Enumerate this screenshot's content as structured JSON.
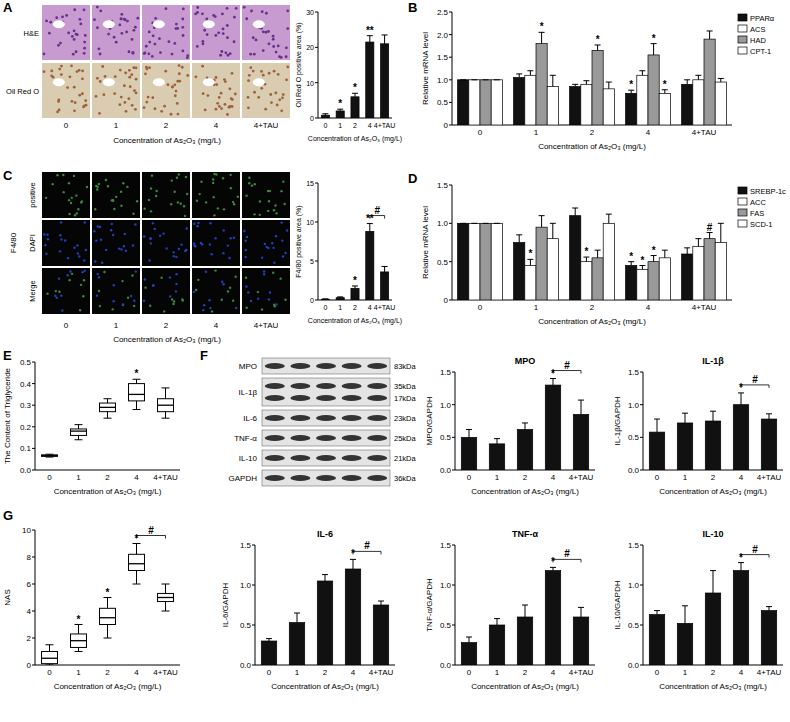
{
  "panel_labels": [
    "A",
    "B",
    "C",
    "D",
    "E",
    "F",
    "G"
  ],
  "images": {
    "A": {
      "row_labels": [
        "H&E",
        "Oil Red O"
      ],
      "column_labels": [
        "0",
        "1",
        "2",
        "4",
        "4+TAU"
      ],
      "x_label": "Concentration of As₂O₃ (mg/L)"
    },
    "C": {
      "group_label": "F4/80",
      "row_labels": [
        "positive",
        "DAPI",
        "Merge"
      ],
      "column_labels": [
        "0",
        "1",
        "2",
        "4",
        "4+TAU"
      ],
      "x_label": "Concentration of As₂O₃ (mg/L)"
    },
    "F": {
      "bands": [
        {
          "label": "MPO",
          "sizes": [
            "83kDa"
          ]
        },
        {
          "label": "IL-1β",
          "sizes": [
            "35kDa",
            "17kDa"
          ]
        },
        {
          "label": "IL-6",
          "sizes": [
            "23kDa"
          ]
        },
        {
          "label": "TNF-α",
          "sizes": [
            "25kDa"
          ]
        },
        {
          "label": "IL-10",
          "sizes": [
            "21kDa"
          ]
        },
        {
          "label": "GAPDH",
          "sizes": [
            "36kDa"
          ]
        }
      ]
    }
  },
  "chart_data": [
    {
      "type": "bar",
      "x_label": "Concentration of As₂O₃ (mg/L)",
      "y_label": "Oil Red O positive area (%)",
      "categories": [
        "0",
        "1",
        "2",
        "4",
        "4+TAU"
      ],
      "values": [
        0.8,
        2,
        6,
        21.5,
        21
      ],
      "errors": [
        0.4,
        0.5,
        1,
        1.8,
        2.5
      ],
      "color": "#111111",
      "ylim": [
        0,
        30
      ],
      "yticks": [
        0,
        10,
        20,
        30
      ],
      "annotations": [
        {
          "text": "*",
          "category": 1
        },
        {
          "text": "*",
          "category": 2
        },
        {
          "text": "**",
          "category": 3
        }
      ]
    },
    {
      "type": "bar",
      "x_label": "Concentration of As₂O₃ (mg/L)",
      "y_label": "Relative mRNA level",
      "categories": [
        "0",
        "1",
        "2",
        "4",
        "4+TAU"
      ],
      "legend": "right",
      "ylim": [
        0,
        2.5
      ],
      "yticks": [
        0,
        {
          "value": 0.5,
          "label": "0.5"
        },
        {
          "value": 1,
          "label": "1.0"
        },
        {
          "value": 1.5,
          "label": "1.5"
        },
        {
          "value": 2,
          "label": "2.0"
        },
        {
          "value": 2.5,
          "label": "2.5"
        }
      ],
      "series": [
        {
          "name": "PPARα",
          "color": "#111111",
          "values": [
            1,
            1.05,
            0.85,
            0.7,
            0.9
          ],
          "errors": [
            0,
            0.08,
            0.05,
            0.07,
            0.1
          ]
        },
        {
          "name": "ACS",
          "color": "#ffffff",
          "values": [
            1,
            1.1,
            0.9,
            1.1,
            1.0
          ],
          "errors": [
            0,
            0.1,
            0.08,
            0.1,
            0.1
          ]
        },
        {
          "name": "HAD",
          "color": "#999999",
          "values": [
            1,
            1.8,
            1.65,
            1.55,
            1.9
          ],
          "errors": [
            0,
            0.25,
            0.12,
            0.25,
            0.18
          ]
        },
        {
          "name": "CPT-1",
          "color": "#ffffff",
          "values": [
            1,
            0.85,
            0.8,
            0.7,
            0.95
          ],
          "errors": [
            0,
            0.25,
            0.15,
            0.08,
            0.08
          ]
        }
      ],
      "annotations": [
        {
          "text": "*",
          "category": 1,
          "series": 2
        },
        {
          "text": "*",
          "category": 2,
          "series": 2
        },
        {
          "text": "*",
          "category": 3,
          "series": 0
        },
        {
          "text": "*",
          "category": 3,
          "series": 2
        },
        {
          "text": "*",
          "category": 3,
          "series": 3
        }
      ]
    },
    {
      "type": "bar",
      "x_label": "Concentration of As₂O₃ (mg/L)",
      "y_label": "F4/80 positive area (%)",
      "categories": [
        "0",
        "1",
        "2",
        "4",
        "4+TAU"
      ],
      "values": [
        0.1,
        0.3,
        1.5,
        8.8,
        3.6
      ],
      "errors": [
        0.05,
        0.1,
        0.3,
        1.0,
        0.7
      ],
      "color": "#111111",
      "ylim": [
        0,
        15
      ],
      "yticks": [
        0,
        5,
        10,
        15
      ],
      "annotations": [
        {
          "text": "*",
          "category": 2
        },
        {
          "text": "**",
          "category": 3
        },
        {
          "text": "#",
          "from": 3,
          "to": 4
        }
      ]
    },
    {
      "type": "bar",
      "x_label": "Concentration of As₂O₃ (mg/L)",
      "y_label": "Relative mRNA level",
      "categories": [
        "0",
        "1",
        "2",
        "4",
        "4+TAU"
      ],
      "legend": "right",
      "ylim": [
        0,
        1.5
      ],
      "yticks": [
        0,
        {
          "value": 0.5,
          "label": "0.5"
        },
        {
          "value": 1,
          "label": "1.0"
        },
        {
          "value": 1.5,
          "label": "1.5"
        }
      ],
      "series": [
        {
          "name": "SREBP-1c",
          "color": "#111111",
          "values": [
            1,
            0.75,
            1.1,
            0.45,
            0.6
          ],
          "errors": [
            0,
            0.1,
            0.1,
            0.05,
            0.08
          ]
        },
        {
          "name": "ACC",
          "color": "#ffffff",
          "values": [
            1,
            0.45,
            0.5,
            0.4,
            0.7
          ],
          "errors": [
            0,
            0.08,
            0.06,
            0.05,
            0.1
          ]
        },
        {
          "name": "FAS",
          "color": "#999999",
          "values": [
            1,
            0.95,
            0.55,
            0.5,
            0.8
          ],
          "errors": [
            0,
            0.15,
            0.1,
            0.08,
            0.08
          ]
        },
        {
          "name": "SCD-1",
          "color": "#ffffff",
          "values": [
            1,
            0.8,
            1.0,
            0.55,
            0.75
          ],
          "errors": [
            0,
            0.2,
            0.12,
            0.1,
            0.25
          ]
        }
      ],
      "annotations": [
        {
          "text": "*",
          "category": 1,
          "series": 1
        },
        {
          "text": "*",
          "category": 2,
          "series": 1
        },
        {
          "text": "*",
          "category": 3,
          "series": 0
        },
        {
          "text": "*",
          "category": 3,
          "series": 1
        },
        {
          "text": "*",
          "category": 3,
          "series": 2
        },
        {
          "text": "#",
          "category": 4,
          "series": 2
        }
      ]
    },
    {
      "type": "box",
      "x_label": "Concentration of As₂O₃ (mg/L)",
      "y_label": "The Content of Triglyceride",
      "categories": [
        "0",
        "1",
        "2",
        "4",
        "4+TAU"
      ],
      "color": "#ffffff",
      "ylim": [
        0,
        0.5
      ],
      "yticks": [
        {
          "value": 0,
          "label": "0.0"
        },
        {
          "value": 0.1,
          "label": "0.1"
        },
        {
          "value": 0.2,
          "label": "0.2"
        },
        {
          "value": 0.3,
          "label": "0.3"
        },
        {
          "value": 0.4,
          "label": "0.4"
        },
        {
          "value": 0.5,
          "label": "0.5"
        }
      ],
      "boxes": [
        {
          "min": 0.06,
          "q1": 0.063,
          "median": 0.067,
          "q3": 0.07,
          "max": 0.073
        },
        {
          "min": 0.14,
          "q1": 0.16,
          "median": 0.18,
          "q3": 0.19,
          "max": 0.21
        },
        {
          "min": 0.24,
          "q1": 0.27,
          "median": 0.29,
          "q3": 0.31,
          "max": 0.33
        },
        {
          "min": 0.28,
          "q1": 0.32,
          "median": 0.35,
          "q3": 0.4,
          "max": 0.42
        },
        {
          "min": 0.24,
          "q1": 0.27,
          "median": 0.3,
          "q3": 0.33,
          "max": 0.38
        }
      ],
      "annotations": [
        {
          "text": "*",
          "category": 3
        }
      ]
    },
    {
      "type": "bar",
      "title": "MPO",
      "x_label": "Concentration of As₂O₃ (mg/L)",
      "y_label": "MPO/GAPDH",
      "categories": [
        "0",
        "1",
        "2",
        "4",
        "4+TAU"
      ],
      "values": [
        0.5,
        0.4,
        0.62,
        1.3,
        0.85
      ],
      "errors": [
        0.12,
        0.08,
        0.1,
        0.1,
        0.22
      ],
      "color": "#111111",
      "ylim": [
        0,
        1.5
      ],
      "yticks": [
        {
          "value": 0,
          "label": "0.0"
        },
        {
          "value": 0.5,
          "label": "0.5"
        },
        {
          "value": 1,
          "label": "1.0"
        },
        {
          "value": 1.5,
          "label": "1.5"
        }
      ],
      "annotations": [
        {
          "text": "*",
          "category": 3
        },
        {
          "text": "#",
          "from": 3,
          "to": 4
        }
      ]
    },
    {
      "type": "bar",
      "title": "IL-1β",
      "x_label": "Concentration of As₂O₃ (mg/L)",
      "y_label": "IL-1β/GAPDH",
      "categories": [
        "0",
        "1",
        "2",
        "4",
        "4+TAU"
      ],
      "values": [
        0.58,
        0.72,
        0.75,
        1.0,
        0.78
      ],
      "errors": [
        0.2,
        0.15,
        0.15,
        0.18,
        0.08
      ],
      "color": "#111111",
      "ylim": [
        0,
        1.5
      ],
      "yticks": [
        {
          "value": 0,
          "label": "0.0"
        },
        {
          "value": 0.5,
          "label": "0.5"
        },
        {
          "value": 1,
          "label": "1.0"
        },
        {
          "value": 1.5,
          "label": "1.5"
        }
      ],
      "annotations": [
        {
          "text": "*",
          "category": 3
        },
        {
          "text": "#",
          "from": 3,
          "to": 4
        }
      ]
    },
    {
      "type": "bar",
      "title": "IL-6",
      "x_label": "Concentration of As₂O₃ (mg/L)",
      "y_label": "IL-6/GAPDH",
      "categories": [
        "0",
        "1",
        "2",
        "4",
        "4+TAU"
      ],
      "values": [
        0.3,
        0.53,
        1.05,
        1.2,
        0.75
      ],
      "errors": [
        0.03,
        0.12,
        0.08,
        0.12,
        0.05
      ],
      "color": "#111111",
      "ylim": [
        0,
        1.5
      ],
      "yticks": [
        {
          "value": 0,
          "label": "0.0"
        },
        {
          "value": 0.5,
          "label": "0.5"
        },
        {
          "value": 1,
          "label": "1.0"
        },
        {
          "value": 1.5,
          "label": "1.5"
        }
      ],
      "annotations": [
        {
          "text": "*",
          "category": 3
        },
        {
          "text": "#",
          "from": 3,
          "to": 4
        }
      ]
    },
    {
      "type": "bar",
      "title": "TNF-α",
      "x_label": "Concentration of As₂O₃ (mg/L)",
      "y_label": "TNF-α/GAPDH",
      "categories": [
        "0",
        "1",
        "2",
        "4",
        "4+TAU"
      ],
      "values": [
        0.28,
        0.5,
        0.6,
        1.18,
        0.6
      ],
      "errors": [
        0.07,
        0.08,
        0.15,
        0.04,
        0.12
      ],
      "color": "#111111",
      "ylim": [
        0,
        1.5
      ],
      "yticks": [
        {
          "value": 0,
          "label": "0.0"
        },
        {
          "value": 0.5,
          "label": "0.5"
        },
        {
          "value": 1,
          "label": "1.0"
        },
        {
          "value": 1.5,
          "label": "1.5"
        }
      ],
      "annotations": [
        {
          "text": "*",
          "category": 3
        },
        {
          "text": "#",
          "from": 3,
          "to": 4
        }
      ]
    },
    {
      "type": "bar",
      "title": "IL-10",
      "x_label": "Concentration of As₂O₃ (mg/L)",
      "y_label": "IL-10/GAPDH",
      "categories": [
        "0",
        "1",
        "2",
        "4",
        "4+TAU"
      ],
      "values": [
        0.63,
        0.52,
        0.9,
        1.18,
        0.68
      ],
      "errors": [
        0.05,
        0.22,
        0.28,
        0.1,
        0.05
      ],
      "color": "#111111",
      "ylim": [
        0,
        1.5
      ],
      "yticks": [
        {
          "value": 0,
          "label": "0.0"
        },
        {
          "value": 0.5,
          "label": "0.5"
        },
        {
          "value": 1,
          "label": "1.0"
        },
        {
          "value": 1.5,
          "label": "1.5"
        }
      ],
      "annotations": [
        {
          "text": "*",
          "category": 3
        },
        {
          "text": "#",
          "from": 3,
          "to": 4
        }
      ]
    },
    {
      "type": "box",
      "x_label": "Concentration of As₂O₃ (mg/L)",
      "y_label": "NAS",
      "categories": [
        "0",
        "1",
        "2",
        "4",
        "4+TAU"
      ],
      "color": "#ffffff",
      "ylim": [
        0,
        10
      ],
      "yticks": [
        0,
        2,
        4,
        6,
        8,
        10
      ],
      "boxes": [
        {
          "min": 0,
          "q1": 0.1,
          "median": 0.5,
          "q3": 1,
          "max": 1.5
        },
        {
          "min": 1,
          "q1": 1.3,
          "median": 1.8,
          "q3": 2.3,
          "max": 3
        },
        {
          "min": 2,
          "q1": 3,
          "median": 3.5,
          "q3": 4.2,
          "max": 5
        },
        {
          "min": 6,
          "q1": 7,
          "median": 7.5,
          "q3": 8.2,
          "max": 9
        },
        {
          "min": 4,
          "q1": 4.7,
          "median": 5,
          "q3": 5.3,
          "max": 6
        }
      ],
      "annotations": [
        {
          "text": "*",
          "category": 1
        },
        {
          "text": "*",
          "category": 2
        },
        {
          "text": "*",
          "category": 3
        },
        {
          "text": "#",
          "from": 3,
          "to": 4
        }
      ]
    }
  ]
}
